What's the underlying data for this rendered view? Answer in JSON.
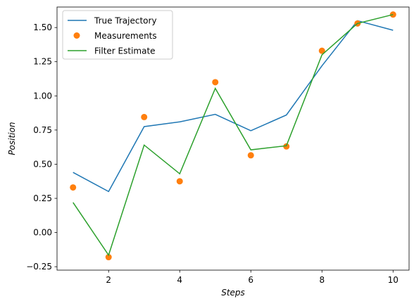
{
  "chart_data": {
    "type": "line",
    "xlabel": "Steps",
    "ylabel": "Position",
    "xlim": [
      0.55,
      10.45
    ],
    "ylim": [
      -0.275,
      1.65
    ],
    "xticks": [
      2,
      4,
      6,
      8,
      10
    ],
    "yticks": [
      -0.25,
      0.0,
      0.25,
      0.5,
      0.75,
      1.0,
      1.25,
      1.5
    ],
    "ytick_labels": [
      "−0.25",
      "0.00",
      "0.25",
      "0.50",
      "0.75",
      "1.00",
      "1.25",
      "1.50"
    ],
    "x": [
      1,
      2,
      3,
      4,
      5,
      6,
      7,
      8,
      9,
      10
    ],
    "grid": false,
    "legend_position": "top-left",
    "series": [
      {
        "name": "True Trajectory",
        "kind": "line",
        "color": "#1f77b4",
        "values": [
          0.44,
          0.3,
          0.775,
          0.81,
          0.865,
          0.745,
          0.86,
          1.22,
          1.55,
          1.48
        ]
      },
      {
        "name": "Measurements",
        "kind": "scatter",
        "color": "#ff7f0e",
        "values": [
          0.33,
          -0.18,
          0.845,
          0.375,
          1.1,
          0.565,
          0.63,
          1.33,
          1.53,
          1.595
        ]
      },
      {
        "name": "Filter Estimate",
        "kind": "line",
        "color": "#2ca02c",
        "values": [
          0.22,
          -0.165,
          0.64,
          0.43,
          1.055,
          0.605,
          0.635,
          1.3,
          1.53,
          1.595
        ]
      }
    ]
  }
}
